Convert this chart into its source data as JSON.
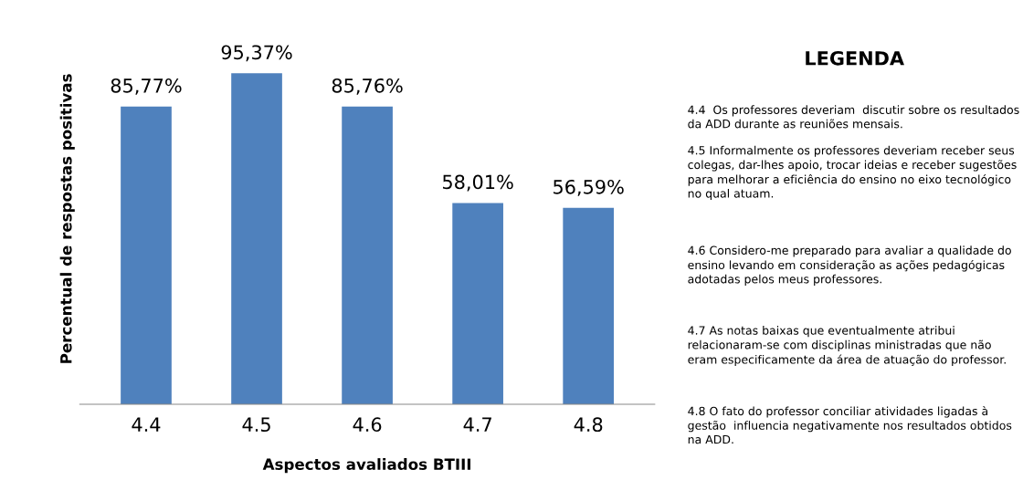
{
  "chart_data": {
    "type": "bar",
    "xlabel": "Aspectos avaliados BTIII",
    "ylabel": "Percentual de respostas positivas",
    "categories": [
      "4.4",
      "4.5",
      "4.6",
      "4.7",
      "4.8"
    ],
    "values": [
      85.77,
      95.37,
      85.76,
      58.01,
      56.59
    ],
    "value_labels": [
      "85,77%",
      "95,37%",
      "85,76%",
      "58,01%",
      "56,59%"
    ],
    "color": "#4f81bd",
    "grid": false,
    "legend": false,
    "annotations": [
      "LEGENDA",
      "4.4  Os professores deveriam  discutir sobre os resultados da ADD durante as reuniões mensais.",
      "4.5 Informalmente os professores deveriam receber seus colegas, dar-lhes apoio, trocar ideias e receber sugestões para melhorar a eficiência do ensino no eixo tecnológico no qual atuam.",
      "4.6 Considero-me preparado para avaliar a qualidade do ensino levando em consideração as ações pedagógicas adotadas pelos meus professores.",
      "4.7 As notas baixas que eventualmente atribui relacionaram-se com disciplinas ministradas que não eram especificamente da área de atuação do professor.",
      "4.8 O fato do professor conciliar atividades ligadas à gestão  influencia negativamente nos resultados obtidos na ADD."
    ]
  }
}
